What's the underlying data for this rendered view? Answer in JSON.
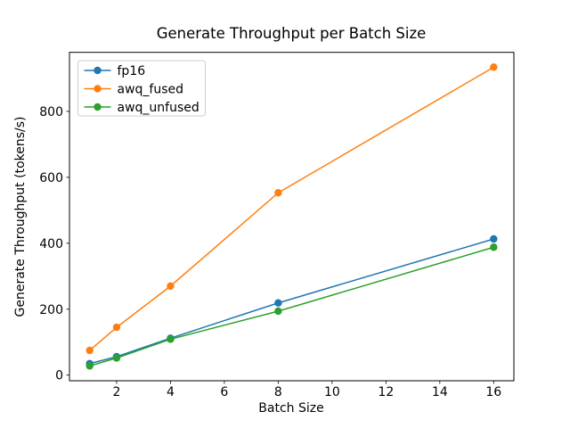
{
  "figure": {
    "background": "#ffffff"
  },
  "chart_data": {
    "type": "line",
    "title": "Generate Throughput per Batch Size",
    "xlabel": "Batch Size",
    "ylabel": "Generate Throughput (tokens/s)",
    "x": [
      1,
      2,
      4,
      8,
      16
    ],
    "series": [
      {
        "name": "fp16",
        "color": "#1f77b4",
        "values": [
          35,
          56,
          112,
          219,
          413
        ]
      },
      {
        "name": "awq_fused",
        "color": "#ff7f0e",
        "values": [
          75,
          145,
          270,
          553,
          934
        ]
      },
      {
        "name": "awq_unfused",
        "color": "#2ca02c",
        "values": [
          28,
          52,
          109,
          194,
          388
        ]
      }
    ],
    "xticks": [
      2,
      4,
      6,
      8,
      10,
      12,
      14,
      16
    ],
    "yticks": [
      0,
      200,
      400,
      600,
      800
    ],
    "xlim": [
      0.25,
      16.75
    ],
    "ylim": [
      -17,
      979
    ],
    "grid": false,
    "marker": "o",
    "legend": {
      "position": "upper left",
      "frame": true,
      "frame_color": "#cccccc"
    },
    "spine_color": "#000000"
  }
}
